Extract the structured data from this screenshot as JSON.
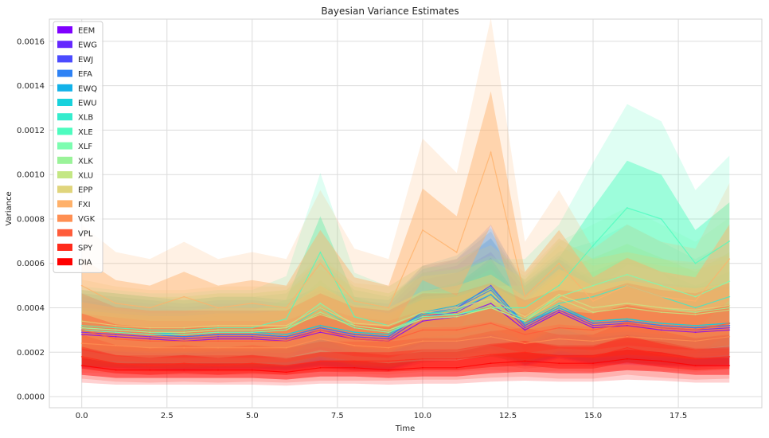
{
  "chart_data": {
    "type": "area",
    "title": "Bayesian Variance Estimates",
    "xlabel": "Time",
    "ylabel": "Variance",
    "xlim": [
      -0.95,
      19.95
    ],
    "ylim": [
      -5e-05,
      0.0017
    ],
    "xticks": [
      0.0,
      2.5,
      5.0,
      7.5,
      10.0,
      12.5,
      15.0,
      17.5
    ],
    "xtick_labels": [
      "0.0",
      "2.5",
      "5.0",
      "7.5",
      "10.0",
      "12.5",
      "15.0",
      "17.5"
    ],
    "yticks": [
      0.0,
      0.0002,
      0.0004,
      0.0006,
      0.0008,
      0.001,
      0.0012,
      0.0014,
      0.0016
    ],
    "ytick_labels": [
      "0.0000",
      "0.0002",
      "0.0004",
      "0.0006",
      "0.0008",
      "0.0010",
      "0.0012",
      "0.0014",
      "0.0016"
    ],
    "grid": true,
    "legend_position": "top-left",
    "x": [
      0,
      1,
      2,
      3,
      4,
      5,
      6,
      7,
      8,
      9,
      10,
      11,
      12,
      13,
      14,
      15,
      16,
      17,
      18,
      19
    ],
    "series": [
      {
        "name": "EEM",
        "color": "#7f00ff",
        "values": [
          0.00028,
          0.00027,
          0.00026,
          0.00025,
          0.00026,
          0.00026,
          0.00025,
          0.00029,
          0.00026,
          0.00025,
          0.00034,
          0.00036,
          0.00042,
          0.0003,
          0.00038,
          0.00031,
          0.00032,
          0.0003,
          0.00029,
          0.0003
        ]
      },
      {
        "name": "EWG",
        "color": "#6528ff",
        "values": [
          0.00029,
          0.00028,
          0.00027,
          0.00026,
          0.00027,
          0.00027,
          0.00026,
          0.0003,
          0.00027,
          0.00026,
          0.00036,
          0.00038,
          0.00046,
          0.00031,
          0.00039,
          0.00032,
          0.00033,
          0.00031,
          0.0003,
          0.00031
        ]
      },
      {
        "name": "EWJ",
        "color": "#4b4bff",
        "values": [
          0.0003,
          0.00029,
          0.00028,
          0.00027,
          0.00028,
          0.00028,
          0.00027,
          0.00031,
          0.00028,
          0.00027,
          0.00038,
          0.0004,
          0.0005,
          0.00032,
          0.0004,
          0.00033,
          0.00034,
          0.00032,
          0.00031,
          0.00032
        ]
      },
      {
        "name": "EFA",
        "color": "#2e82f5",
        "values": [
          0.0003,
          0.00029,
          0.00028,
          0.00027,
          0.00028,
          0.00028,
          0.00027,
          0.00031,
          0.00028,
          0.00027,
          0.00037,
          0.0004,
          0.00048,
          0.00032,
          0.0004,
          0.00033,
          0.00034,
          0.00032,
          0.00031,
          0.00032
        ]
      },
      {
        "name": "EWQ",
        "color": "#12b2e9",
        "values": [
          0.00031,
          0.0003,
          0.00029,
          0.00028,
          0.00029,
          0.00029,
          0.00028,
          0.00032,
          0.00029,
          0.00028,
          0.00038,
          0.00041,
          0.00049,
          0.00033,
          0.00041,
          0.00034,
          0.00035,
          0.00033,
          0.00032,
          0.00033
        ]
      },
      {
        "name": "EWU",
        "color": "#18d2dc",
        "values": [
          0.00031,
          0.0003,
          0.00029,
          0.00028,
          0.00029,
          0.00029,
          0.00028,
          0.00032,
          0.00029,
          0.00028,
          0.00037,
          0.00039,
          0.00046,
          0.00033,
          0.0004,
          0.00034,
          0.00035,
          0.00033,
          0.00032,
          0.00033
        ]
      },
      {
        "name": "XLB",
        "color": "#35eccd",
        "values": [
          0.0003,
          0.00029,
          0.00028,
          0.00028,
          0.00029,
          0.00029,
          0.0003,
          0.0004,
          0.00031,
          0.00029,
          0.00036,
          0.00037,
          0.0004,
          0.00034,
          0.00042,
          0.00045,
          0.0005,
          0.00045,
          0.0004,
          0.00045
        ]
      },
      {
        "name": "XLE",
        "color": "#4dfcbf",
        "values": [
          0.00032,
          0.00031,
          0.0003,
          0.0003,
          0.00031,
          0.00031,
          0.00035,
          0.00065,
          0.00036,
          0.00032,
          0.00038,
          0.00037,
          0.0004,
          0.0004,
          0.0005,
          0.00068,
          0.00085,
          0.0008,
          0.0006,
          0.0007
        ]
      },
      {
        "name": "XLF",
        "color": "#7cfdb0",
        "values": [
          0.00031,
          0.0003,
          0.00029,
          0.00029,
          0.0003,
          0.0003,
          0.00031,
          0.00042,
          0.00032,
          0.0003,
          0.00036,
          0.00037,
          0.00041,
          0.00035,
          0.00045,
          0.0005,
          0.00055,
          0.0005,
          0.00045,
          0.00052
        ]
      },
      {
        "name": "XLK",
        "color": "#9af399",
        "values": [
          0.0003,
          0.00029,
          0.00028,
          0.00028,
          0.00029,
          0.00029,
          0.0003,
          0.00038,
          0.00031,
          0.00029,
          0.00035,
          0.00036,
          0.0004,
          0.00034,
          0.00046,
          0.0004,
          0.00042,
          0.0004,
          0.00038,
          0.0004
        ]
      },
      {
        "name": "XLU",
        "color": "#c4e784",
        "values": [
          0.00031,
          0.0003,
          0.00029,
          0.00029,
          0.0003,
          0.0003,
          0.00031,
          0.00037,
          0.00032,
          0.0003,
          0.00035,
          0.00036,
          0.0004,
          0.00034,
          0.00044,
          0.00038,
          0.0004,
          0.00038,
          0.00037,
          0.00039
        ]
      },
      {
        "name": "EPP",
        "color": "#e0d57c",
        "values": [
          0.00034,
          0.00032,
          0.00031,
          0.00031,
          0.00032,
          0.00032,
          0.00032,
          0.0004,
          0.00033,
          0.00032,
          0.00038,
          0.0004,
          0.00044,
          0.00036,
          0.00046,
          0.0004,
          0.00042,
          0.0004,
          0.00039,
          0.00041
        ]
      },
      {
        "name": "FXI",
        "color": "#ffb16a",
        "values": [
          0.0005,
          0.00042,
          0.0004,
          0.00045,
          0.0004,
          0.00042,
          0.0004,
          0.0006,
          0.00043,
          0.0004,
          0.00075,
          0.00065,
          0.0011,
          0.00045,
          0.0006,
          0.00043,
          0.0005,
          0.00045,
          0.00043,
          0.00062
        ]
      },
      {
        "name": "VGK",
        "color": "#ff8f52",
        "values": [
          0.00024,
          0.00023,
          0.00022,
          0.00022,
          0.00022,
          0.00022,
          0.00022,
          0.00026,
          0.00023,
          0.00022,
          0.00025,
          0.00025,
          0.00027,
          0.00024,
          0.00026,
          0.00025,
          0.00027,
          0.00026,
          0.00025,
          0.00027
        ]
      },
      {
        "name": "VPL",
        "color": "#ff5c3a",
        "values": [
          0.0003,
          0.00026,
          0.00025,
          0.00025,
          0.00025,
          0.00025,
          0.00025,
          0.0003,
          0.00026,
          0.00025,
          0.0003,
          0.0003,
          0.00033,
          0.00028,
          0.00031,
          0.0003,
          0.00033,
          0.00031,
          0.0003,
          0.00033
        ]
      },
      {
        "name": "SPY",
        "color": "#ff2b1c",
        "values": [
          0.00018,
          0.00015,
          0.00014,
          0.00015,
          0.00014,
          0.00015,
          0.00014,
          0.00016,
          0.00016,
          0.00016,
          0.00017,
          0.00017,
          0.00019,
          0.0002,
          0.00018,
          0.00018,
          0.00022,
          0.00019,
          0.00017,
          0.00018
        ]
      },
      {
        "name": "DIA",
        "color": "#ff0000",
        "values": [
          0.00014,
          0.00012,
          0.00012,
          0.00012,
          0.00012,
          0.00012,
          0.00011,
          0.00013,
          0.00013,
          0.00012,
          0.00013,
          0.00013,
          0.00015,
          0.00016,
          0.00015,
          0.00015,
          0.00017,
          0.00016,
          0.00014,
          0.00014
        ]
      }
    ]
  }
}
